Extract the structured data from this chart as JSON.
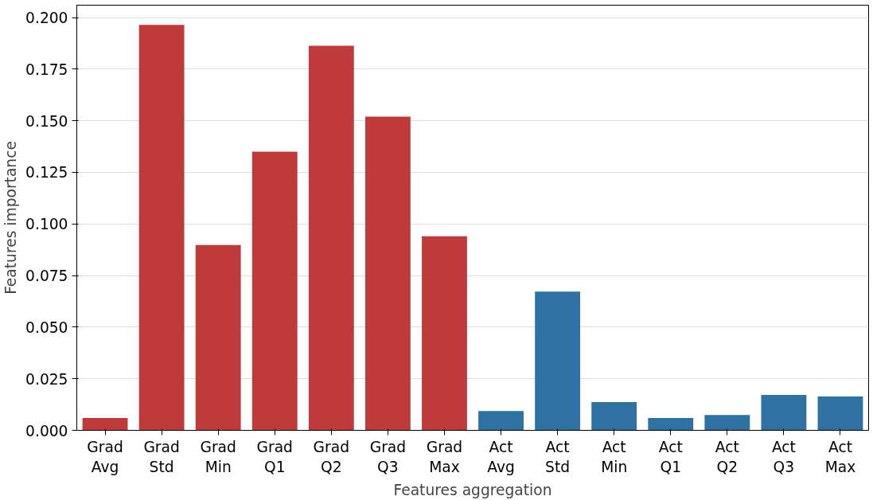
{
  "chart_data": {
    "type": "bar",
    "xlabel": "Features aggregation",
    "ylabel": "Features importance",
    "categories": [
      "Grad\nAvg",
      "Grad\nStd",
      "Grad\nMin",
      "Grad\nQ1",
      "Grad\nQ2",
      "Grad\nQ3",
      "Grad\nMax",
      "Act\nAvg",
      "Act\nStd",
      "Act\nMin",
      "Act\nQ1",
      "Act\nQ2",
      "Act\nQ3",
      "Act\nMax"
    ],
    "values": [
      0.006,
      0.1965,
      0.0898,
      0.135,
      0.1863,
      0.152,
      0.094,
      0.0094,
      0.0672,
      0.0137,
      0.006,
      0.0074,
      0.0172,
      0.0164
    ],
    "colors": [
      "#bf3b3b",
      "#bf3b3b",
      "#bf3b3b",
      "#bf3b3b",
      "#bf3b3b",
      "#bf3b3b",
      "#bf3b3b",
      "#2e72a3",
      "#2e72a3",
      "#2e72a3",
      "#2e72a3",
      "#2e72a3",
      "#2e72a3",
      "#2e72a3"
    ],
    "ylim": [
      0,
      0.206
    ],
    "yticks": [
      {
        "value": 0,
        "label": "0.000"
      },
      {
        "value": 0.025,
        "label": "0.025"
      },
      {
        "value": 0.05,
        "label": "0.050"
      },
      {
        "value": 0.075,
        "label": "0.075"
      },
      {
        "value": 0.1,
        "label": "0.100"
      },
      {
        "value": 0.125,
        "label": "0.125"
      },
      {
        "value": 0.15,
        "label": "0.150"
      },
      {
        "value": 0.175,
        "label": "0.175"
      },
      {
        "value": 0.2,
        "label": "0.200"
      }
    ],
    "grid": "y"
  }
}
